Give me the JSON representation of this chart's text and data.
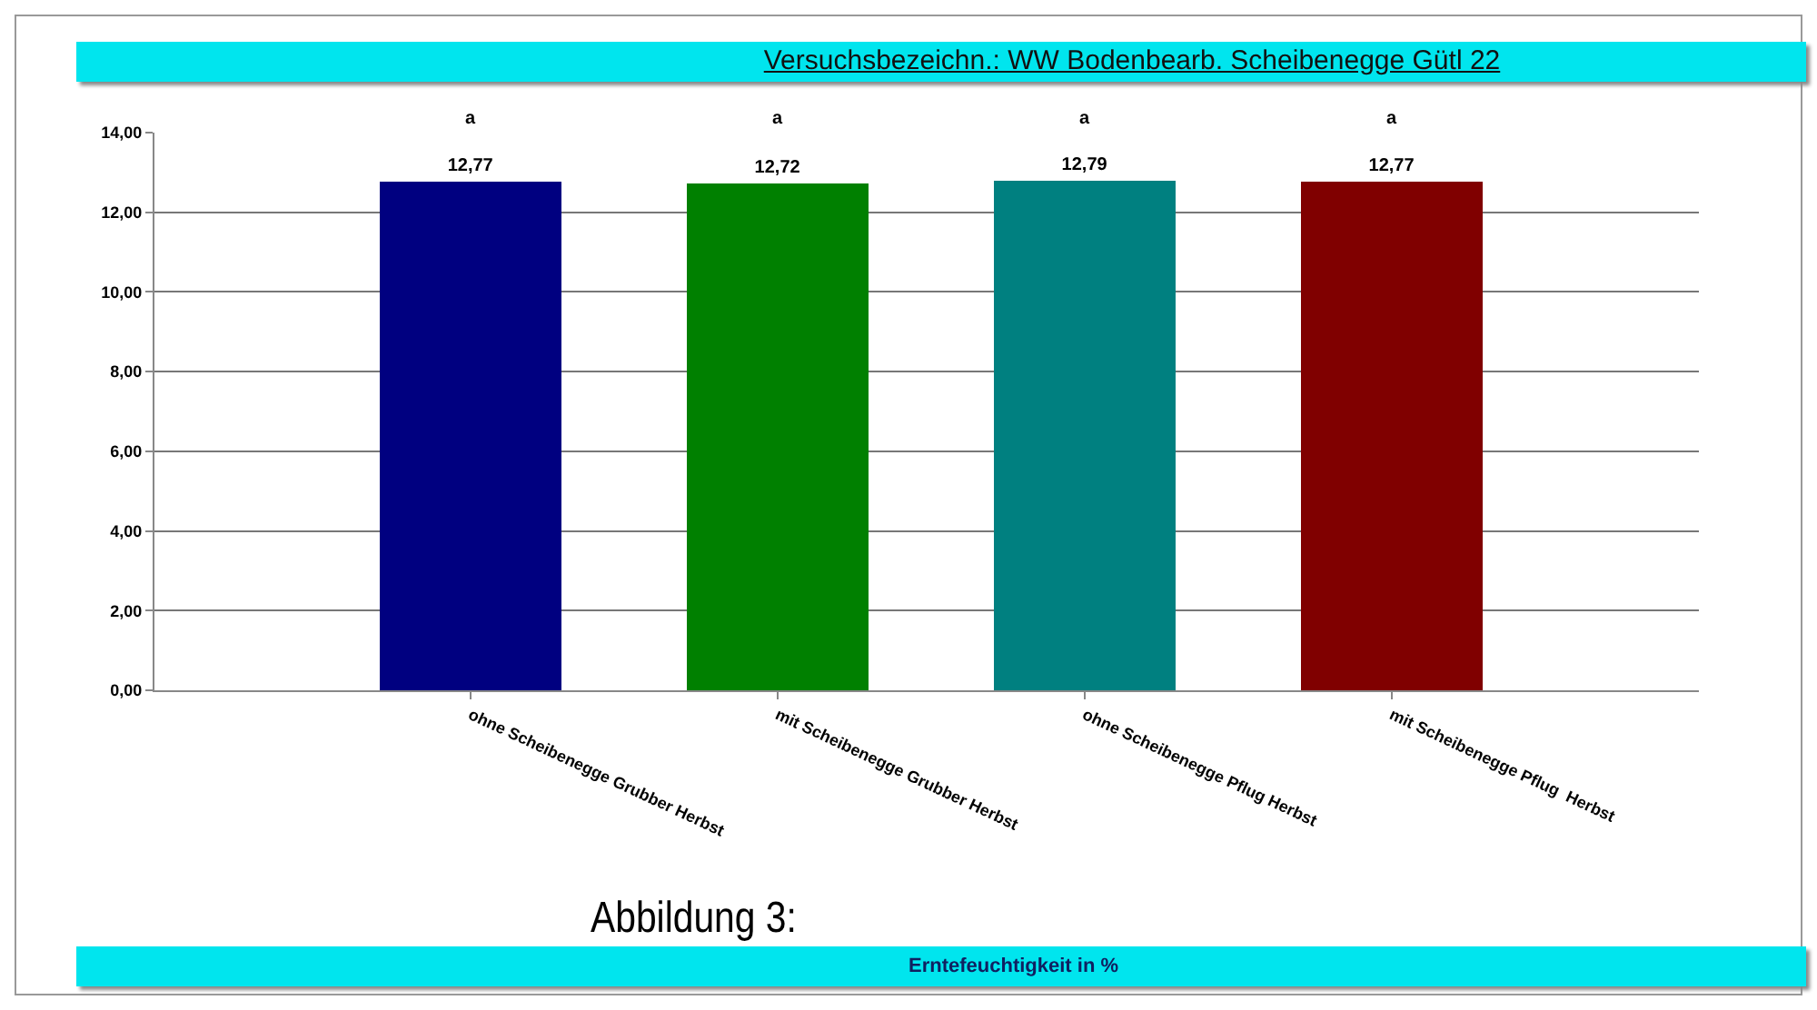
{
  "chart_data": {
    "type": "bar",
    "title": "Versuchsbezeichn.: WW Bodenbearb. Scheibenegge Gütl 22",
    "categories": [
      "ohne Scheibenegge Grubber Herbst",
      "mit Scheibenegge Grubber Herbst",
      "ohne Scheibenegge Pflug Herbst",
      "mit Scheibenegge Pflug  Herbst"
    ],
    "values": [
      12.77,
      12.72,
      12.79,
      12.77
    ],
    "colors": [
      "#000080",
      "#008000",
      "#008080",
      "#800000"
    ],
    "value_labels": [
      "12,77",
      "12,72",
      "12,79",
      "12,77"
    ],
    "ylim": [
      0,
      14
    ],
    "yticks": [
      {
        "value": 0,
        "label": "0,00"
      },
      {
        "value": 2,
        "label": "2,00"
      },
      {
        "value": 4,
        "label": "4,00"
      },
      {
        "value": 6,
        "label": "6,00"
      },
      {
        "value": 8,
        "label": "8,00"
      },
      {
        "value": 10,
        "label": "10,00"
      },
      {
        "value": 12,
        "label": "12,00"
      },
      {
        "value": 14,
        "label": "14,00"
      }
    ],
    "grid": "y",
    "annotations": [
      "a",
      "a",
      "a",
      "a",
      "Abbildung 3:",
      "Erntefeuchtigkeit in %"
    ]
  }
}
